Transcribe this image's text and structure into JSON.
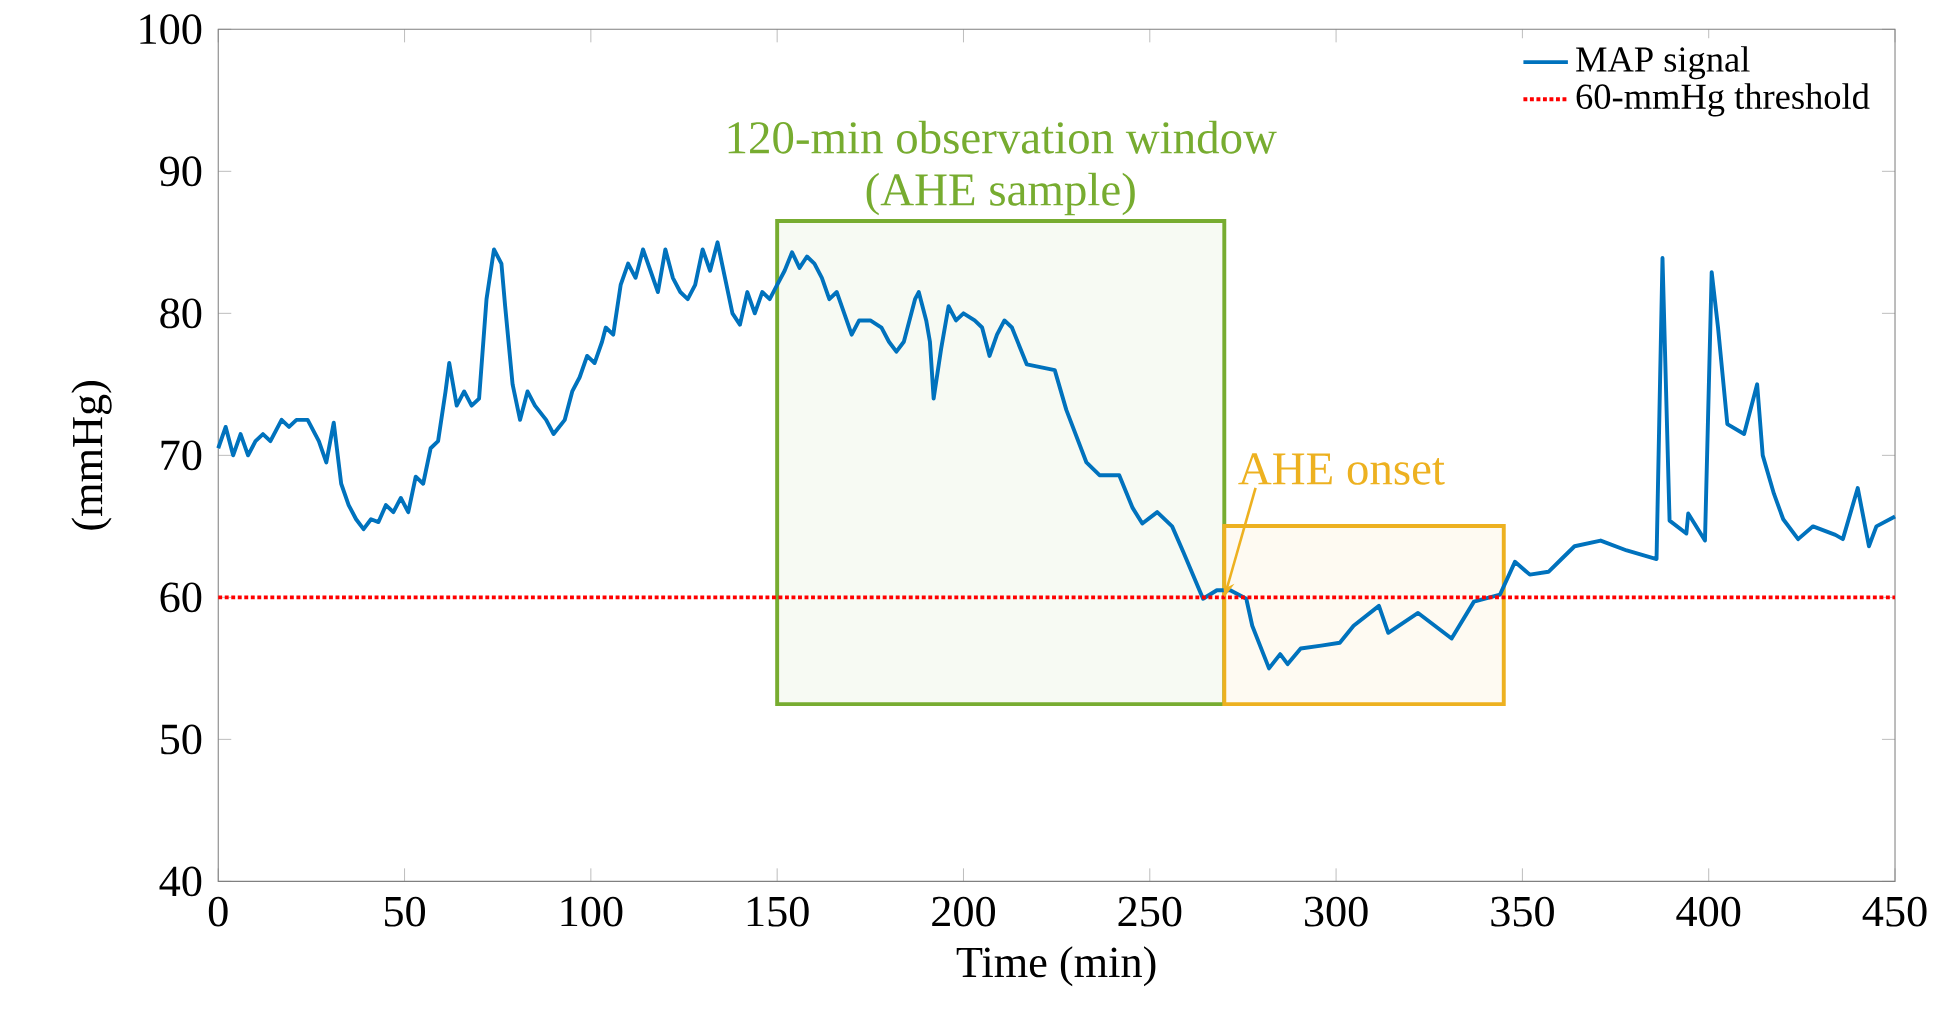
{
  "chart_data": {
    "type": "line",
    "xlabel": "Time (min)",
    "ylabel": "(mmHg)",
    "xlim": [
      0,
      450
    ],
    "xticks": [
      0,
      50,
      100,
      150,
      200,
      250,
      300,
      350,
      400,
      450
    ],
    "ylim": [
      40,
      100
    ],
    "yticks": [
      40,
      50,
      60,
      70,
      80,
      90,
      100
    ],
    "legend": "top right",
    "grid": false,
    "series": [
      {
        "name": "MAP signal",
        "color": "#0072bd",
        "x": [
          0,
          2,
          4,
          6,
          8,
          10,
          12,
          14,
          17,
          19,
          21,
          24,
          27,
          29,
          31,
          33,
          35,
          37,
          39,
          41,
          43,
          45,
          47,
          49,
          51,
          53,
          55,
          57,
          59,
          61,
          62,
          64,
          66,
          68,
          70,
          72,
          74,
          76,
          77,
          79,
          81,
          83,
          85,
          88,
          90,
          93,
          95,
          97,
          99,
          101,
          103,
          104,
          106,
          108,
          110,
          112,
          114,
          116,
          118,
          120,
          122,
          124,
          126,
          128,
          130,
          132,
          134,
          136,
          138,
          140,
          142,
          144,
          146,
          148,
          150,
          152,
          154,
          156,
          158,
          160,
          162,
          164,
          166,
          168,
          170,
          172,
          175,
          178,
          180,
          182,
          184,
          187,
          188,
          190,
          191,
          192,
          194,
          196,
          198,
          200,
          203,
          205,
          207,
          209,
          211,
          213,
          217,
          224.5,
          227.6,
          233,
          236.5,
          241.8,
          245.4,
          248,
          252,
          256,
          259,
          264.3,
          268,
          271.6,
          275.9,
          277.5,
          282,
          285,
          287,
          290.5,
          296,
          301,
          304.7,
          311.5,
          314,
          322,
          331,
          337,
          344,
          348,
          352,
          357,
          360.5,
          364,
          371,
          378,
          386,
          387.6,
          389.5,
          394,
          394.5,
          399,
          400.8,
          402.5,
          405,
          409.5,
          413,
          414.5,
          417.5,
          420,
          424,
          428,
          434,
          436,
          440,
          443,
          445,
          450
        ],
        "values": [
          70.5,
          72,
          70,
          71.5,
          70,
          71,
          71.5,
          71,
          72.5,
          72,
          72.5,
          72.5,
          71,
          69.5,
          72.3,
          68,
          66.5,
          65.5,
          64.8,
          65.5,
          65.3,
          66.5,
          66,
          67,
          66,
          68.5,
          68,
          70.5,
          71,
          74.5,
          76.5,
          73.5,
          74.5,
          73.5,
          74,
          81,
          84.5,
          83.5,
          80.5,
          75,
          72.5,
          74.5,
          73.5,
          72.5,
          71.5,
          72.5,
          74.5,
          75.5,
          77,
          76.5,
          78,
          79,
          78.5,
          82,
          83.5,
          82.5,
          84.5,
          83,
          81.5,
          84.5,
          82.5,
          81.5,
          81,
          82,
          84.5,
          83,
          85,
          82.5,
          80,
          79.2,
          81.5,
          80,
          81.5,
          81,
          82,
          83,
          84.3,
          83.2,
          84,
          83.5,
          82.5,
          81,
          81.5,
          80,
          78.5,
          79.5,
          79.5,
          79,
          78,
          77.3,
          78,
          81,
          81.5,
          79.5,
          78,
          74,
          77.5,
          80.5,
          79.5,
          80,
          79.5,
          79,
          77,
          78.5,
          79.5,
          79,
          76.4,
          76,
          73.2,
          69.5,
          68.6,
          68.6,
          66.3,
          65.2,
          66,
          65,
          63.2,
          59.9,
          60.5,
          60.5,
          59.9,
          58,
          55,
          56,
          55.3,
          56.4,
          56.6,
          56.8,
          58,
          59.4,
          57.5,
          58.9,
          57.1,
          59.7,
          60.2,
          62.5,
          61.6,
          61.8,
          62.7,
          63.6,
          64,
          63.3,
          62.7,
          83.9,
          65.4,
          64.5,
          65.9,
          64,
          82.9,
          79,
          72.2,
          71.5,
          75,
          70,
          67.3,
          65.5,
          64.1,
          65,
          64.4,
          64.1,
          67.7,
          63.6,
          65,
          65.7
        ]
      }
    ],
    "ref_lines": [
      {
        "axis": "y",
        "value": 60,
        "label": "60-mmHg threshold",
        "color": "#ff0000",
        "line_style": "dotted"
      }
    ],
    "bands": [
      {
        "axis": "x",
        "from": 150,
        "to": 270,
        "label": "120-min observation window (AHE sample)",
        "color": "#77ac30"
      },
      {
        "axis": "x",
        "from": 270,
        "to": 345,
        "label": null,
        "color": "#edb120"
      }
    ],
    "annotations": [
      {
        "text": "AHE onset",
        "x": 270,
        "y": 60
      }
    ]
  }
}
